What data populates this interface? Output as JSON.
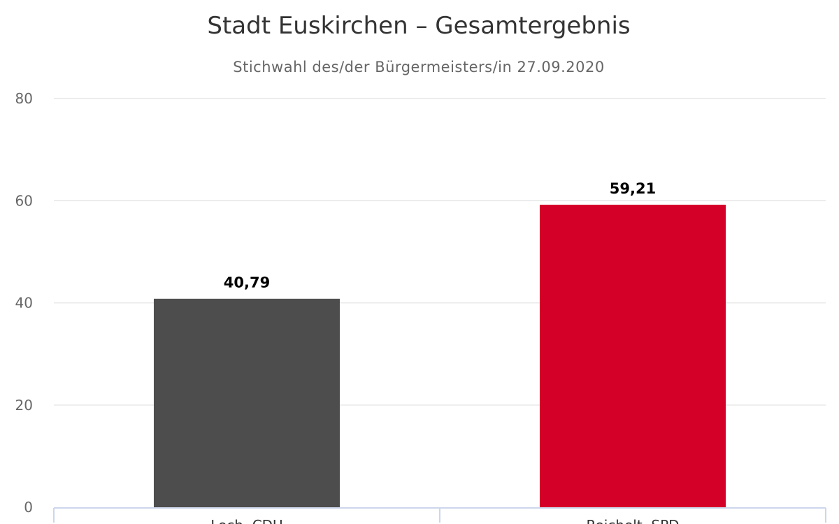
{
  "chart_data": {
    "type": "bar",
    "title": "Stadt Euskirchen – Gesamtergebnis",
    "subtitle": "Stichwahl des/der Bürgermeisters/in 27.09.2020",
    "categories": [
      "Loch, CDU",
      "Reichelt, SPD"
    ],
    "values": [
      40.79,
      59.21
    ],
    "data_labels": [
      "40,79",
      "59,21"
    ],
    "colors": [
      "#4d4d4d",
      "#d50028"
    ],
    "ylim": [
      0,
      80
    ],
    "yticks": [
      "0",
      "20",
      "40",
      "60",
      "80"
    ],
    "xlabel": "",
    "ylabel": "",
    "grid": true,
    "legend": "none"
  }
}
